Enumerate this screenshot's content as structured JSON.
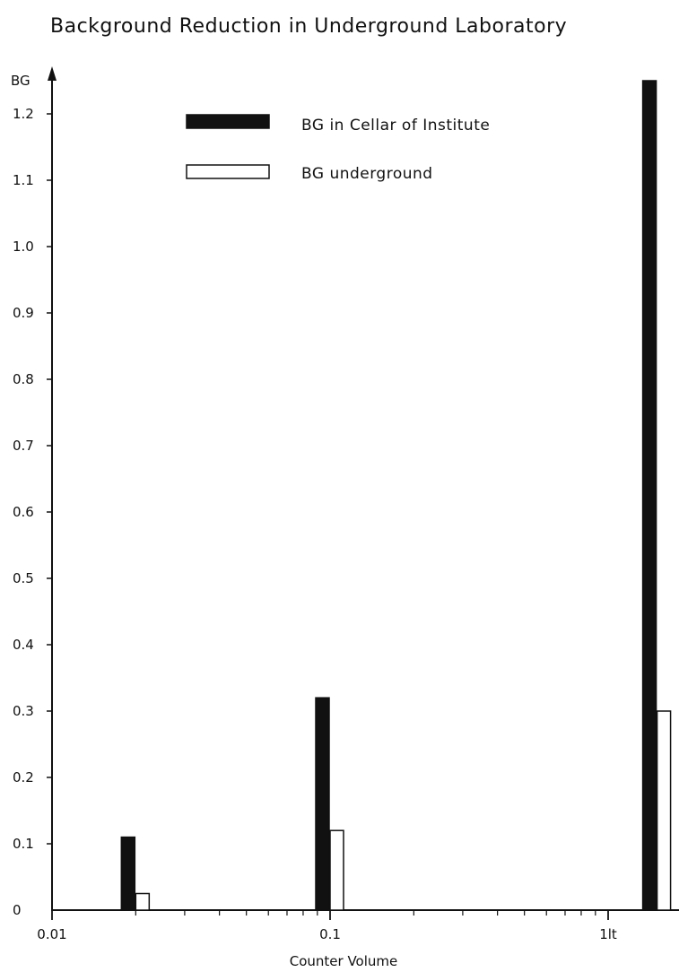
{
  "chart_data": {
    "type": "bar",
    "title": "Background Reduction in Underground Laboratory",
    "xlabel": "Counter Volume",
    "ylabel": "BG",
    "x_scale": "log",
    "xlim": [
      0.01,
      2
    ],
    "ylim": [
      0,
      1.25
    ],
    "y_ticks": [
      0,
      0.1,
      0.2,
      0.3,
      0.4,
      0.5,
      0.6,
      0.7,
      0.8,
      0.9,
      1.0,
      1.1,
      1.2
    ],
    "y_tick_labels": [
      "0",
      "0.1",
      "0.2",
      "0.3",
      "0.4",
      "0.5",
      "0.6",
      "0.7",
      "0.8",
      "0.9",
      "1.0",
      "1.1",
      "1.2"
    ],
    "x_ticks": [
      0.01,
      0.1,
      1
    ],
    "x_tick_labels": [
      "0.01",
      "0.1",
      "1lt"
    ],
    "categories": [
      "0.02",
      "0.1",
      "1.5"
    ],
    "grid": false,
    "legend_position": "top-center",
    "series": [
      {
        "name": "BG in Cellar of Institute",
        "x": [
          0.02,
          0.1,
          1.5
        ],
        "values": [
          0.11,
          0.32,
          1.25
        ],
        "color": "#111111",
        "fill": "solid"
      },
      {
        "name": "BG underground",
        "x": [
          0.02,
          0.1,
          1.5
        ],
        "values": [
          0.025,
          0.12,
          0.3
        ],
        "color": "#111111",
        "fill": "outline"
      }
    ]
  }
}
